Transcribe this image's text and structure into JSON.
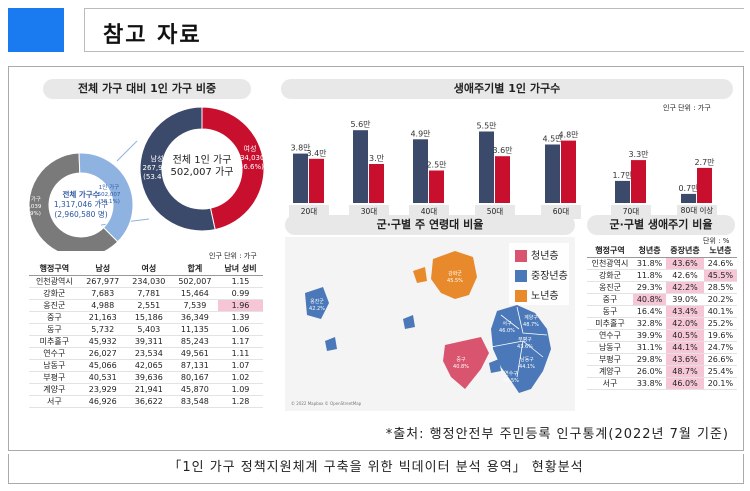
{
  "header": {
    "title": "참고 자료"
  },
  "left": {
    "title": "전체 가구 대비 1인 가구 비중",
    "gray_donut": {
      "center_line1": "전체 가구수",
      "center_line2": "1,317,046 가구",
      "center_line3": "(2,960,580 명)",
      "multi_label": "다인 가구\n815,039\n(61.9%)",
      "single_label": "1인 가구\n502,007\n(38.1%)",
      "values": [
        61.9,
        38.1
      ]
    },
    "big_donut": {
      "center_line1": "전체 1인 가구",
      "center_line2": "502,007 가구",
      "male_label": "남성\n267,977\n(53.4%)",
      "female_label": "여성\n234,030\n(46.6%)",
      "values": [
        53.4,
        46.6
      ]
    },
    "unit": "인구 단위 : 가구",
    "table": {
      "headers": [
        "행정구역",
        "남성",
        "여성",
        "합계",
        "남녀 성비"
      ],
      "rows": [
        [
          "인천광역시",
          "267,977",
          "234,030",
          "502,007",
          "1.15"
        ],
        [
          "강화군",
          "7,683",
          "7,781",
          "15,464",
          "0.99"
        ],
        [
          "옹진군",
          "4,988",
          "2,551",
          "7,539",
          "1.96"
        ],
        [
          "중구",
          "21,163",
          "15,186",
          "36,349",
          "1.39"
        ],
        [
          "동구",
          "5,732",
          "5,403",
          "11,135",
          "1.06"
        ],
        [
          "미추홀구",
          "45,932",
          "39,311",
          "85,243",
          "1.17"
        ],
        [
          "연수구",
          "26,027",
          "23,534",
          "49,561",
          "1.11"
        ],
        [
          "남동구",
          "45,066",
          "42,065",
          "87,131",
          "1.07"
        ],
        [
          "부평구",
          "40,531",
          "39,636",
          "80,167",
          "1.02"
        ],
        [
          "계양구",
          "23,929",
          "21,941",
          "45,870",
          "1.09"
        ],
        [
          "서구",
          "46,926",
          "36,622",
          "83,548",
          "1.28"
        ]
      ]
    }
  },
  "chart_data": {
    "type": "bar",
    "title": "생애주기별 1인 가구수",
    "unit": "인구 단위 : 가구",
    "categories": [
      "20대",
      "30대",
      "40대",
      "50대",
      "60대",
      "70대",
      "80대 이상"
    ],
    "series": [
      {
        "values": [
          3.8,
          5.6,
          4.9,
          5.5,
          4.5,
          1.7,
          0.7
        ],
        "labels": [
          "3.8만",
          "5.6만",
          "4.9만",
          "5.5만",
          "4.5만",
          "1.7만",
          "0.7만"
        ]
      },
      {
        "values": [
          3.4,
          3.0,
          2.5,
          3.6,
          4.8,
          3.3,
          2.7
        ],
        "labels": [
          "3.4만",
          "3.만",
          "2.5만",
          "3.6만",
          "4.8만",
          "3.3만",
          "2.7만"
        ]
      }
    ],
    "ylim": [
      0,
      6
    ]
  },
  "map": {
    "title": "군·구별 주 연령대 비율",
    "legend": [
      "청년층",
      "중장년층",
      "노년층"
    ],
    "labels": [
      {
        "t": "강화군\n45.5%"
      },
      {
        "t": "옹진군\n42.2%"
      },
      {
        "t": "중구\n40.8%"
      },
      {
        "t": "서구\n46.0%"
      },
      {
        "t": "계양구\n48.7%"
      },
      {
        "t": "부평구\n43.6%"
      },
      {
        "t": "남동구\n44.1%"
      },
      {
        "t": "연수구\n40.5%"
      }
    ],
    "copyright": "© 2022 Mapbox © OpenStreetMap"
  },
  "right_table": {
    "title": "군·구별 생애주기 비율",
    "unit": "단위 : %",
    "headers": [
      "행정구역",
      "청년층",
      "중장년층",
      "노년층"
    ],
    "rows": [
      [
        "인천광역시",
        "31.8%",
        "43.6%",
        "24.6%"
      ],
      [
        "강화군",
        "11.8%",
        "42.6%",
        "45.5%"
      ],
      [
        "옹진군",
        "29.3%",
        "42.2%",
        "28.5%"
      ],
      [
        "중구",
        "40.8%",
        "39.0%",
        "20.2%"
      ],
      [
        "동구",
        "16.4%",
        "43.4%",
        "40.1%"
      ],
      [
        "미추홀구",
        "32.8%",
        "42.0%",
        "25.2%"
      ],
      [
        "연수구",
        "39.9%",
        "40.5%",
        "19.6%"
      ],
      [
        "남동구",
        "31.1%",
        "44.1%",
        "24.7%"
      ],
      [
        "부평구",
        "29.8%",
        "43.6%",
        "26.6%"
      ],
      [
        "계양구",
        "26.0%",
        "48.7%",
        "25.4%"
      ],
      [
        "서구",
        "33.8%",
        "46.0%",
        "20.1%"
      ]
    ],
    "highlight": [
      [
        0,
        2
      ],
      [
        1,
        3
      ],
      [
        2,
        2
      ],
      [
        3,
        1
      ],
      [
        4,
        2
      ],
      [
        5,
        2
      ],
      [
        6,
        2
      ],
      [
        7,
        2
      ],
      [
        8,
        2
      ],
      [
        9,
        2
      ],
      [
        10,
        2
      ]
    ]
  },
  "source": "*출처: 행정안전부 주민등록 인구통계(2022년 7월 기준)",
  "footer": "「1인 가구 정책지원체계 구축을 위한 빅데이터 분석 용역」 현황분석",
  "colors": {
    "navy": "#3b4a6b",
    "red": "#c8102e",
    "gray": "#7a7a7a",
    "light_blue": "#8fb3e0",
    "pink": "#f6c6d6",
    "young": "#d9546e",
    "middle": "#4a78b8",
    "old": "#e8892b"
  }
}
